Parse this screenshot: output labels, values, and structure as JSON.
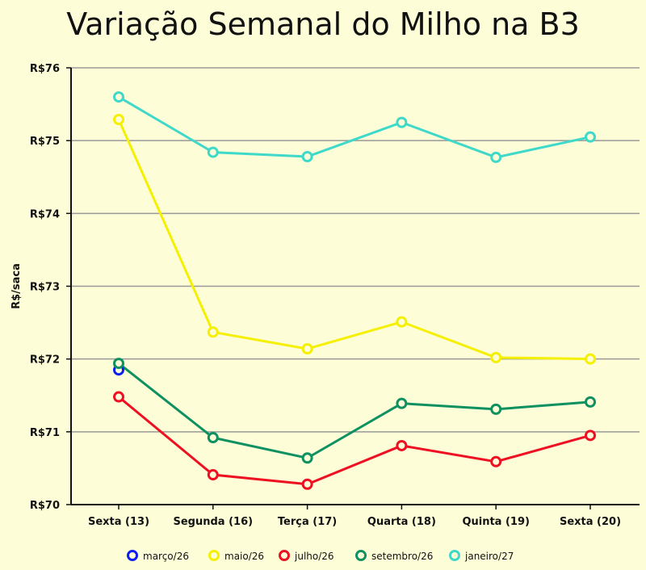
{
  "chart_data": {
    "type": "line",
    "title": "Variação Semanal do Milho na B3",
    "xlabel": "",
    "ylabel": "R$/saca",
    "categories": [
      "Sexta (13)",
      "Segunda (16)",
      "Terça (17)",
      "Quarta (18)",
      "Quinta (19)",
      "Sexta (20)"
    ],
    "ylim": [
      70,
      76
    ],
    "yticks": [
      70,
      71,
      72,
      73,
      74,
      75,
      76
    ],
    "ytick_labels": [
      "R$70",
      "R$71",
      "R$72",
      "R$73",
      "R$74",
      "R$75",
      "R$76"
    ],
    "grid": true,
    "legend_position": "bottom",
    "series": [
      {
        "name": "março/26",
        "color": "#0a1ff0",
        "values": [
          71.85,
          null,
          null,
          null,
          null,
          null
        ]
      },
      {
        "name": "maio/26",
        "color": "#f5f000",
        "values": [
          75.29,
          72.37,
          72.14,
          72.51,
          72.02,
          72.0
        ]
      },
      {
        "name": "julho/26",
        "color": "#ee1022",
        "values": [
          71.48,
          70.41,
          70.28,
          70.81,
          70.59,
          70.95
        ]
      },
      {
        "name": "setembro/26",
        "color": "#0e9160",
        "values": [
          71.94,
          70.92,
          70.64,
          71.39,
          71.31,
          71.41
        ]
      },
      {
        "name": "janeiro/27",
        "color": "#3fd9c9",
        "values": [
          75.6,
          74.84,
          74.78,
          75.25,
          74.77,
          75.05
        ]
      }
    ]
  }
}
